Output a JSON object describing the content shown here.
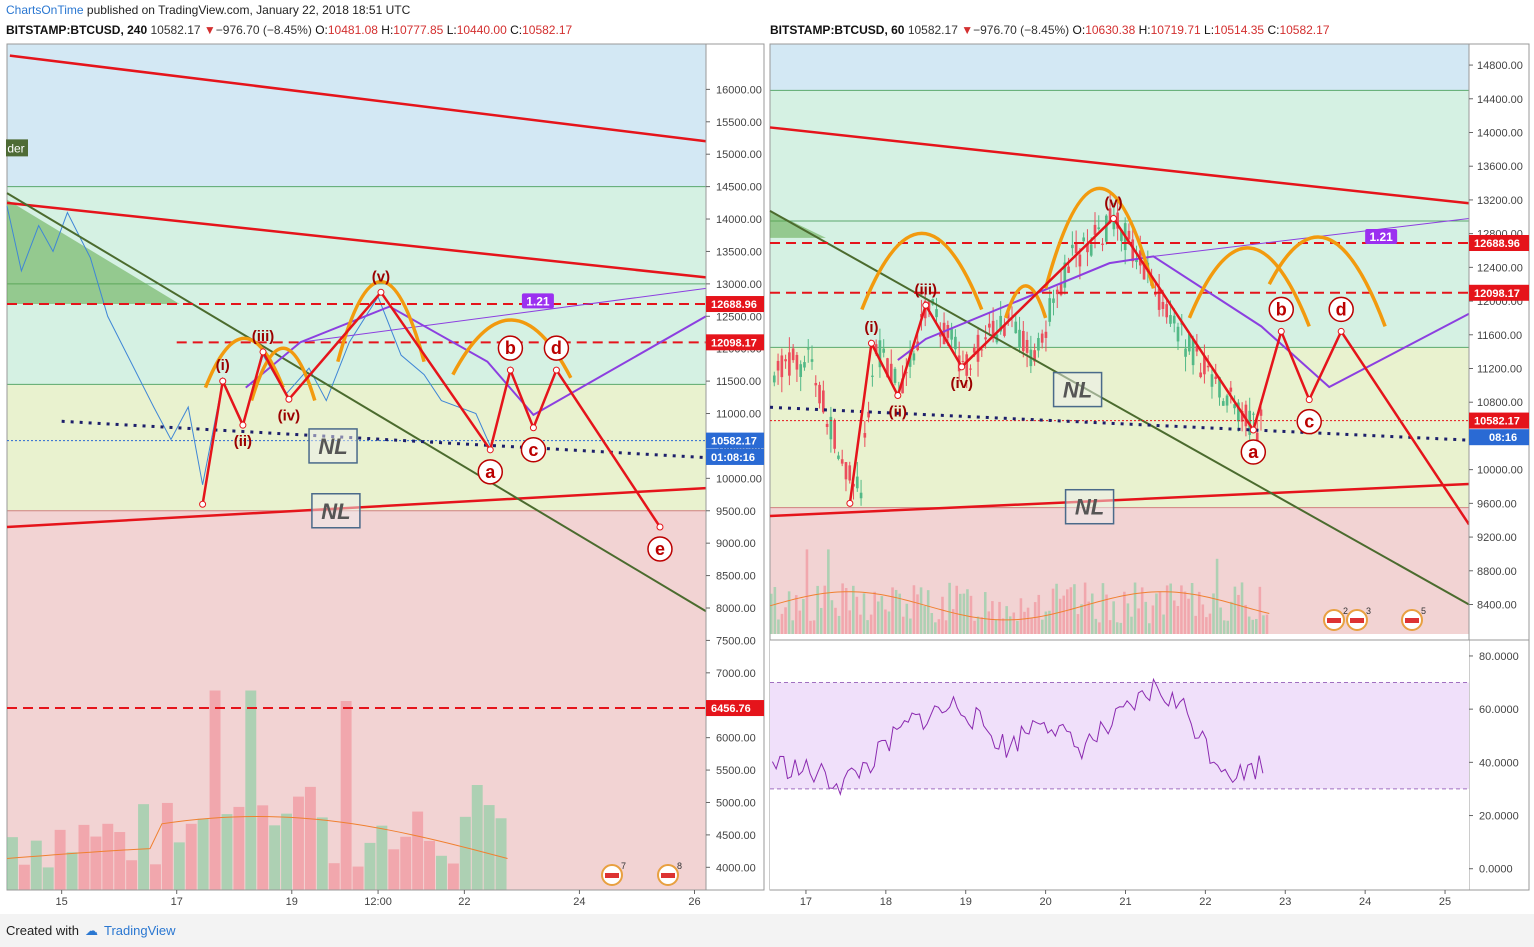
{
  "page": {
    "publisher": "ChartsOnTime",
    "published_text": "published on TradingView.com, January 22, 2018 18:51 UTC",
    "created_with": "Created with",
    "tradingview": "TradingView"
  },
  "colors": {
    "up": "#7fcf9f",
    "down": "#f08a94",
    "wave": "#e5141b",
    "arc": "#f29a0e",
    "projection": "#8c3fe0",
    "trendline": "#4b6b2e",
    "neckline": "#1d1f6b",
    "zone_blue": "#d3e8f4",
    "zone_green": "#d5f1e3",
    "zone_yellow": "#e9f2cf",
    "zone_red": "#f2d3d3",
    "rsi_band": "#f0e0fa",
    "rsi_line": "#8b2ab0"
  },
  "chart_data": [
    {
      "type": "candlestick",
      "symbol": "BITSTAMP:BTCUSD",
      "interval": "240",
      "last": "10582.17",
      "change": "−976.70 (−8.45%)",
      "open": "10481.08",
      "high": "10777.85",
      "low": "10440.00",
      "close": "10582.17",
      "ylim": [
        3650,
        16700
      ],
      "y_ticks": [
        "16000.00",
        "15500.00",
        "15000.00",
        "14500.00",
        "14000.00",
        "13500.00",
        "13000.00",
        "12500.00",
        "12000.00",
        "11500.00",
        "11000.00",
        "10500.00",
        "10000.00",
        "9500.00",
        "9000.00",
        "8500.00",
        "8000.00",
        "7500.00",
        "7000.00",
        "6500.00",
        "6000.00",
        "5500.00",
        "5000.00",
        "4500.00",
        "4000.00"
      ],
      "x_ticks": [
        {
          "label": "15",
          "day": 15
        },
        {
          "label": "17",
          "day": 17
        },
        {
          "label": "19",
          "day": 19
        },
        {
          "label": "12:00",
          "day": 20.5
        },
        {
          "label": "22",
          "day": 22
        },
        {
          "label": "24",
          "day": 24
        },
        {
          "label": "26",
          "day": 26
        }
      ],
      "xlim": [
        14.05,
        26.2
      ],
      "price_tags": [
        {
          "text": "12688.96",
          "value": 12688.96,
          "color": "#e5141b"
        },
        {
          "text": "12098.17",
          "value": 12098.17,
          "color": "#e5141b"
        },
        {
          "text": "10582.17",
          "value": 10582.17,
          "color": "#2a6ad4"
        },
        {
          "text": "01:08:16",
          "value": 10330,
          "color": "#2a6ad4"
        },
        {
          "text": "6456.76",
          "value": 6456.76,
          "color": "#e5141b"
        }
      ],
      "side_label": "der",
      "projection_label": "1.21",
      "neckline_labels": [
        "NL",
        "NL"
      ],
      "wave_points": [
        {
          "label": "(i)",
          "x": 17.8,
          "y": 11500
        },
        {
          "label": "(ii)",
          "x": 18.15,
          "y": 10820
        },
        {
          "label": "(iii)",
          "x": 18.5,
          "y": 11950
        },
        {
          "label": "(iv)",
          "x": 18.95,
          "y": 11220
        },
        {
          "label": "(v)",
          "x": 20.55,
          "y": 12870
        },
        {
          "label": "a",
          "x": 22.45,
          "y": 10440
        },
        {
          "label": "b",
          "x": 22.8,
          "y": 11670
        },
        {
          "label": "c",
          "x": 23.2,
          "y": 10780
        },
        {
          "label": "d",
          "x": 23.6,
          "y": 11670
        },
        {
          "label": "e",
          "x": 25.4,
          "y": 9250
        }
      ],
      "events": [
        "7",
        "8"
      ]
    },
    {
      "type": "candlestick",
      "symbol": "BITSTAMP:BTCUSD",
      "interval": "60",
      "last": "10582.17",
      "change": "−976.70 (−8.45%)",
      "open": "10630.38",
      "high": "10719.71",
      "low": "10514.35",
      "close": "10582.17",
      "ylim": [
        8050,
        15050
      ],
      "y_ticks": [
        "14800.00",
        "14400.00",
        "14000.00",
        "13600.00",
        "13200.00",
        "12800.00",
        "12400.00",
        "12000.00",
        "11600.00",
        "11200.00",
        "10800.00",
        "10400.00",
        "10000.00",
        "9600.00",
        "9200.00",
        "8800.00",
        "8400.00"
      ],
      "x_ticks": [
        {
          "label": "17",
          "day": 17
        },
        {
          "label": "18",
          "day": 18
        },
        {
          "label": "19",
          "day": 19
        },
        {
          "label": "20",
          "day": 20
        },
        {
          "label": "21",
          "day": 21
        },
        {
          "label": "22",
          "day": 22
        },
        {
          "label": "23",
          "day": 23
        },
        {
          "label": "24",
          "day": 24
        },
        {
          "label": "25",
          "day": 25
        }
      ],
      "xlim": [
        16.55,
        25.3
      ],
      "price_tags": [
        {
          "text": "12688.96",
          "value": 12688.96,
          "color": "#e5141b"
        },
        {
          "text": "12098.17",
          "value": 12098.17,
          "color": "#e5141b"
        },
        {
          "text": "10582.17",
          "value": 10582.17,
          "color": "#e5141b"
        },
        {
          "text": "08:16",
          "value": 10385,
          "color": "#2a6ad4"
        }
      ],
      "projection_label": "1.21",
      "neckline_labels": [
        "NL",
        "NL"
      ],
      "wave_points": [
        {
          "label": "(i)",
          "x": 17.82,
          "y": 11500
        },
        {
          "label": "(ii)",
          "x": 18.15,
          "y": 10880
        },
        {
          "label": "(iii)",
          "x": 18.5,
          "y": 11950
        },
        {
          "label": "(iv)",
          "x": 18.95,
          "y": 11220
        },
        {
          "label": "(v)",
          "x": 20.85,
          "y": 12980
        },
        {
          "label": "a",
          "x": 22.6,
          "y": 10470
        },
        {
          "label": "b",
          "x": 22.95,
          "y": 11640
        },
        {
          "label": "c",
          "x": 23.3,
          "y": 10830
        },
        {
          "label": "d",
          "x": 23.7,
          "y": 11640
        }
      ],
      "events": [
        "2",
        "3",
        "5"
      ],
      "rsi": {
        "ylim": [
          -8,
          86
        ],
        "y_ticks": [
          "80.0000",
          "60.0000",
          "40.0000",
          "20.0000",
          "0.0000"
        ],
        "band": [
          30,
          70
        ]
      }
    }
  ]
}
